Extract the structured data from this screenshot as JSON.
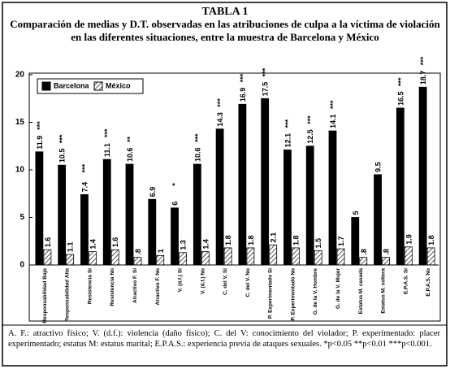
{
  "chart_data": {
    "type": "bar",
    "title": "TABLA 1",
    "subtitle": "Comparación de medias y D.T. observadas en las atribuciones de culpa a la víctima de violación en las diferentes situaciones, entre la muestra de Barcelona y México",
    "categories": [
      "Responsabilidad Baja",
      "Responsabilidad Alta",
      "Resistencia Sí",
      "Resistencia No",
      "Atractivo F. Sí",
      "Atractivo F. No",
      "V. (d.f.) Sí",
      "V. (d.f.) No",
      "C. del V. Sí",
      "C. del V. No",
      "P. Experimentado Sí",
      "P. Experimentado No",
      "G. de la V. Hombre",
      "G. de la V. Mujer",
      "Estatus M. casada",
      "Estatus M. soltera",
      "E.P.A.S. Sí",
      "E.P.A.S. No"
    ],
    "series": [
      {
        "name": "Barcelona",
        "color": "#000000",
        "values": [
          11.9,
          10.5,
          7.4,
          11.1,
          10.6,
          6.9,
          6,
          10.6,
          14.3,
          16.9,
          17.5,
          12.1,
          12.5,
          14.1,
          5,
          9.5,
          16.5,
          18.7
        ],
        "significance": [
          "***",
          "***",
          "***",
          "***",
          "**",
          null,
          "*",
          "***",
          "***",
          "***",
          "***",
          "***",
          "***",
          "***",
          null,
          null,
          "***",
          "***"
        ]
      },
      {
        "name": "México",
        "color": "#000000",
        "pattern": "hatch",
        "values": [
          1.6,
          1.1,
          1.4,
          1.6,
          0.8,
          1,
          1.3,
          1.4,
          1.8,
          1.8,
          2.1,
          1.8,
          1.5,
          1.7,
          0.8,
          0.8,
          1.9,
          1.8
        ],
        "value_labels": [
          "1.6",
          "1.1",
          "1.4",
          "1.6",
          ".8",
          "1",
          "1.3",
          "1.4",
          "1.8",
          "1.8",
          "2.1",
          "1.8",
          "1.5",
          "1.7",
          ".8",
          ".8",
          "1.9",
          "1.8"
        ]
      }
    ],
    "ylim": [
      0,
      20
    ],
    "yticks": [
      0,
      5,
      10,
      15,
      20
    ],
    "grid": false,
    "legend": "top-left",
    "footnote": "A. F.: atractivo físico; V. (d.f.): violencia (daño físico); C. del V: conocimiento del violador; P. experimentado: placer experimentado; estatus M: estatus marital; E.P.A.S.: experiencia previa de ataques sexuales. *p<0.05 **p<0.01 ***p<0.001."
  }
}
